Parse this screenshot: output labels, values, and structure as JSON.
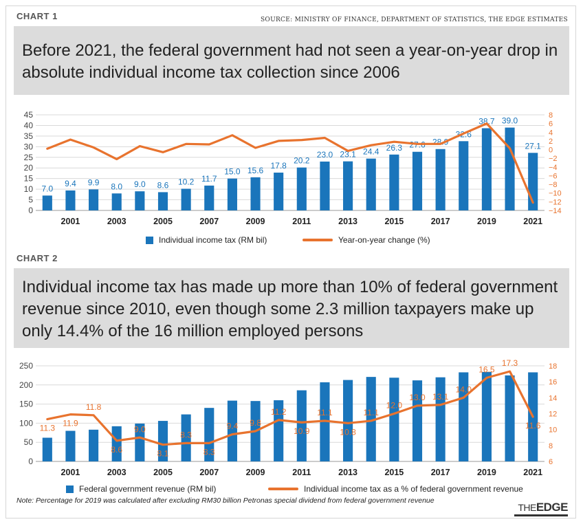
{
  "source": "SOURCE: MINISTRY OF FINANCE, DEPARTMENT OF STATISTICS, THE EDGE ESTIMATES",
  "note": "Note: Percentage for 2019 was calculated after excluding RM30 billion Petronas special dividend from federal government revenue",
  "logo": {
    "the": "THE",
    "edge": "EDGE"
  },
  "colors": {
    "bar": "#1a75bb",
    "line": "#e8732e",
    "headline_bg": "#dcdcdc"
  },
  "chart_data": [
    {
      "type": "bar",
      "label": "CHART 1",
      "title": "Before 2021, the federal government had not seen a year-on-year drop in absolute individual income tax collection since 2006",
      "x": [
        2000,
        2001,
        2002,
        2003,
        2004,
        2005,
        2006,
        2007,
        2008,
        2009,
        2010,
        2011,
        2012,
        2013,
        2014,
        2015,
        2016,
        2017,
        2018,
        2019,
        2020,
        2021
      ],
      "x_tick_labels": [
        "2001",
        "2003",
        "2005",
        "2007",
        "2009",
        "2011",
        "2013",
        "2015",
        "2017",
        "2019",
        "2021"
      ],
      "series": [
        {
          "name": "Individual income tax (RM bil)",
          "type": "bar",
          "axis": "left",
          "values": [
            7.0,
            9.4,
            9.9,
            8.0,
            9.0,
            8.6,
            10.2,
            11.7,
            15.0,
            15.6,
            17.8,
            20.2,
            23.0,
            23.1,
            24.4,
            26.3,
            27.6,
            28.9,
            32.6,
            38.7,
            39.0,
            27.1
          ],
          "labels": [
            "7.0",
            "9.4",
            "9.9",
            "8.0",
            "9.0",
            "8.6",
            "10.2",
            "11.7",
            "15.0",
            "15.6",
            "17.8",
            "20.2",
            "23.0",
            "23.1",
            "24.4",
            "26.3",
            "27.6",
            "28.9",
            "32.6",
            "38.7",
            "39.0",
            "27.1"
          ]
        },
        {
          "name": "Year-on-year change (%)",
          "type": "line",
          "axis": "right",
          "values": [
            0.2,
            2.3,
            0.5,
            -2.2,
            0.8,
            -0.6,
            1.3,
            1.2,
            3.3,
            0.4,
            2.0,
            2.2,
            2.7,
            -0.3,
            1.0,
            1.8,
            1.3,
            1.3,
            3.7,
            6.0,
            0.3,
            -12.2
          ]
        }
      ],
      "y_left": {
        "min": 0,
        "max": 45,
        "ticks": [
          0,
          5,
          10,
          15,
          20,
          25,
          30,
          35,
          40,
          45
        ]
      },
      "y_right": {
        "min": -14,
        "max": 8,
        "ticks": [
          8,
          6,
          4,
          2,
          0,
          -2,
          -4,
          -6,
          -8,
          -10,
          -12,
          -14
        ],
        "tick_labels": [
          "8",
          "6",
          "4",
          "2",
          "0",
          "−2",
          "−4",
          "−6",
          "−8",
          "−10",
          "−12",
          "−14"
        ]
      },
      "grid": true
    },
    {
      "type": "bar",
      "label": "CHART 2",
      "title": "Individual income tax has made up more than 10% of federal government revenue since 2010, even though some 2.3 million taxpayers make up only 14.4% of the 16 million employed persons",
      "x": [
        2000,
        2001,
        2002,
        2003,
        2004,
        2005,
        2006,
        2007,
        2008,
        2009,
        2010,
        2011,
        2012,
        2013,
        2014,
        2015,
        2016,
        2017,
        2018,
        2019,
        2020,
        2021
      ],
      "x_tick_labels": [
        "2001",
        "2003",
        "2005",
        "2007",
        "2009",
        "2011",
        "2013",
        "2015",
        "2017",
        "2019",
        "2021"
      ],
      "series": [
        {
          "name": "Federal government revenue (RM bil)",
          "type": "bar",
          "axis": "left",
          "values": [
            62,
            80,
            83,
            92,
            99,
            106,
            123,
            140,
            159,
            158,
            160,
            186,
            207,
            213,
            221,
            219,
            212,
            220,
            233,
            234,
            225,
            233
          ]
        },
        {
          "name": "Individual income tax as a % of federal government revenue",
          "type": "line",
          "axis": "right",
          "values": [
            11.3,
            11.9,
            11.8,
            8.6,
            9.0,
            8.1,
            8.3,
            8.3,
            9.4,
            9.8,
            11.2,
            10.9,
            11.1,
            10.8,
            11.1,
            12.0,
            13.0,
            13.1,
            14.0,
            16.5,
            17.3,
            11.6
          ],
          "labels": [
            "11.3",
            "11.9",
            "11.8",
            "8.6",
            "9.0",
            "8.1",
            "8.3",
            "8.3",
            "9.4",
            "9.8",
            "11.2",
            "10.9",
            "11.1",
            "10.8",
            "11.1",
            "12.0",
            "13.0",
            "13.1",
            "14.0",
            "16.5",
            "17.3",
            "11.6"
          ]
        }
      ],
      "y_left": {
        "min": 0,
        "max": 250,
        "ticks": [
          0,
          50,
          100,
          150,
          200,
          250
        ]
      },
      "y_right": {
        "min": 6,
        "max": 18,
        "ticks": [
          18,
          16,
          14,
          12,
          10,
          8,
          6
        ],
        "tick_labels": [
          "18",
          "16",
          "14",
          "12",
          "10",
          "8",
          "6"
        ]
      },
      "grid": true
    }
  ]
}
